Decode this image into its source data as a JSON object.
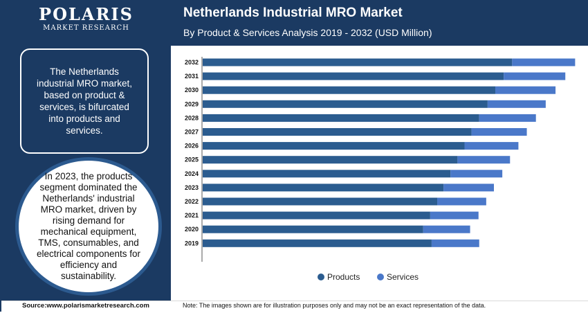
{
  "brand": {
    "name": "POLARIS",
    "tagline": "MARKET RESEARCH"
  },
  "header": {
    "title": "Netherlands Industrial MRO Market",
    "subtitle": "By Product & Services Analysis 2019 - 2032 (USD Million)"
  },
  "sidebar": {
    "summary": "The Netherlands industrial MRO market, based on product & services, is bifurcated into products and services.",
    "highlight": "In 2023, the products segment dominated the Netherlands' industrial MRO market, driven by rising demand for mechanical equipment, TMS, consumables, and electrical components for efficiency and sustainability."
  },
  "footer": {
    "source": "Source:www.polarismarketresearch.com",
    "note": "Note: The images shown are for illustration purposes only and may not be an exact representation of the data."
  },
  "colors": {
    "navy": "#1b3a62",
    "products": "#2b5c8f",
    "services": "#4a78c9"
  },
  "chart_data": {
    "type": "bar",
    "orientation": "horizontal",
    "stacked": true,
    "categories": [
      "2019",
      "2020",
      "2021",
      "2022",
      "2023",
      "2024",
      "2025",
      "2026",
      "2027",
      "2028",
      "2029",
      "2030",
      "2031",
      "2032"
    ],
    "series": [
      {
        "name": "Products",
        "values": [
          327,
          315,
          325,
          335,
          344,
          354,
          364,
          374,
          384,
          395,
          407,
          418,
          430,
          442
        ]
      },
      {
        "name": "Services",
        "values": [
          68,
          67,
          69,
          70,
          72,
          74,
          75,
          77,
          79,
          81,
          83,
          86,
          88,
          90
        ]
      }
    ],
    "grid": false,
    "legend": "bottom"
  }
}
